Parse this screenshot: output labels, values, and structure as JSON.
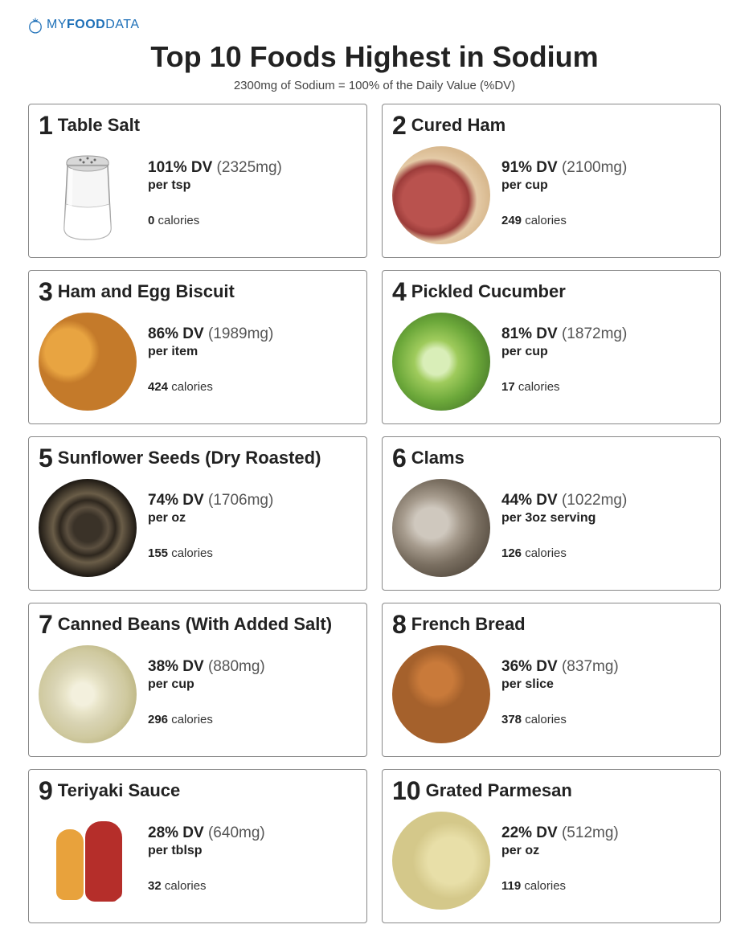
{
  "brand": {
    "pre": "MY",
    "mid": "FOOD",
    "post": "DATA"
  },
  "title": "Top 10 Foods Highest in Sodium",
  "subtitle": "2300mg of Sodium = 100% of the Daily Value (%DV)",
  "cal_word": "calories",
  "foods": [
    {
      "rank": "1",
      "name": "Table Salt",
      "dv": "101% DV",
      "mg": "(2325mg)",
      "serving": "per tsp",
      "cal": "0",
      "img": "img-salt"
    },
    {
      "rank": "2",
      "name": "Cured Ham",
      "dv": "91% DV",
      "mg": "(2100mg)",
      "serving": "per cup",
      "cal": "249",
      "img": "img-ham"
    },
    {
      "rank": "3",
      "name": "Ham and Egg Biscuit",
      "dv": "86% DV",
      "mg": "(1989mg)",
      "serving": "per item",
      "cal": "424",
      "img": "img-biscuit"
    },
    {
      "rank": "4",
      "name": "Pickled Cucumber",
      "dv": "81% DV",
      "mg": "(1872mg)",
      "serving": "per cup",
      "cal": "17",
      "img": "img-cucumber"
    },
    {
      "rank": "5",
      "name": "Sunflower Seeds (Dry Roasted)",
      "dv": "74% DV",
      "mg": "(1706mg)",
      "serving": "per oz",
      "cal": "155",
      "img": "img-seeds"
    },
    {
      "rank": "6",
      "name": "Clams",
      "dv": "44% DV",
      "mg": "(1022mg)",
      "serving": "per 3oz serving",
      "cal": "126",
      "img": "img-clams"
    },
    {
      "rank": "7",
      "name": "Canned Beans (With Added Salt)",
      "dv": "38% DV",
      "mg": "(880mg)",
      "serving": "per cup",
      "cal": "296",
      "img": "img-beans"
    },
    {
      "rank": "8",
      "name": "French Bread",
      "dv": "36% DV",
      "mg": "(837mg)",
      "serving": "per slice",
      "cal": "378",
      "img": "img-bread"
    },
    {
      "rank": "9",
      "name": "Teriyaki Sauce",
      "dv": "28% DV",
      "mg": "(640mg)",
      "serving": "per tblsp",
      "cal": "32",
      "img": "img-sauce"
    },
    {
      "rank": "10",
      "name": "Grated Parmesan",
      "dv": "22% DV",
      "mg": "(512mg)",
      "serving": "per oz",
      "cal": "119",
      "img": "img-parmesan"
    }
  ],
  "colors": {
    "brand": "#1e70b8",
    "border": "#888888",
    "text": "#222222",
    "muted": "#555555"
  }
}
